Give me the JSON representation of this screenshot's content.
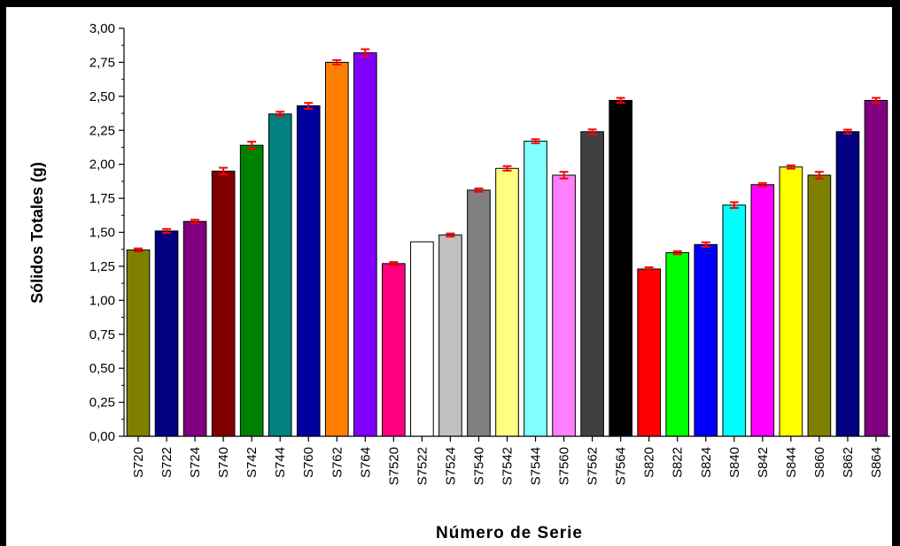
{
  "chart_data": {
    "type": "bar",
    "title": "",
    "xlabel": "Número de Serie",
    "ylabel": "Sólidos Totales (g)",
    "ylim": [
      0,
      3
    ],
    "yticks": [
      "0,00",
      "0,25",
      "0,50",
      "0,75",
      "1,00",
      "1,25",
      "1,50",
      "1,75",
      "2,00",
      "2,25",
      "2,50",
      "2,75",
      "3,00"
    ],
    "categories": [
      "S720",
      "S722",
      "S724",
      "S740",
      "S742",
      "S744",
      "S760",
      "S762",
      "S764",
      "S7520",
      "S7522",
      "S7524",
      "S7540",
      "S7542",
      "S7544",
      "S7560",
      "S7562",
      "S7564",
      "S820",
      "S822",
      "S824",
      "S840",
      "S842",
      "S844",
      "S860",
      "S862",
      "S864"
    ],
    "values": [
      1.37,
      1.51,
      1.58,
      1.95,
      2.14,
      2.37,
      2.43,
      2.75,
      2.82,
      1.27,
      1.43,
      1.48,
      1.81,
      1.97,
      2.17,
      1.92,
      2.24,
      2.47,
      1.23,
      1.35,
      1.41,
      1.7,
      1.85,
      1.98,
      1.92,
      2.24,
      2.47
    ],
    "errors": [
      0.005,
      0.008,
      0.006,
      0.018,
      0.02,
      0.01,
      0.015,
      0.01,
      0.02,
      0.005,
      0.0,
      0.005,
      0.006,
      0.01,
      0.008,
      0.018,
      0.01,
      0.012,
      0.006,
      0.005,
      0.01,
      0.015,
      0.006,
      0.006,
      0.018,
      0.008,
      0.012
    ],
    "colors": [
      "#808000",
      "#000080",
      "#800080",
      "#800000",
      "#008000",
      "#008080",
      "#0000A0",
      "#FF8000",
      "#8000FF",
      "#FF0080",
      "#FFFFFF",
      "#C0C0C0",
      "#808080",
      "#FFFF80",
      "#80FFFF",
      "#FF80FF",
      "#404040",
      "#000000",
      "#FF0000",
      "#00FF00",
      "#0000FF",
      "#00FFFF",
      "#FF00FF",
      "#FFFF00",
      "#808000",
      "#000080",
      "#800080"
    ],
    "error_color": "#FF0000",
    "grid": false,
    "legend": "none"
  }
}
